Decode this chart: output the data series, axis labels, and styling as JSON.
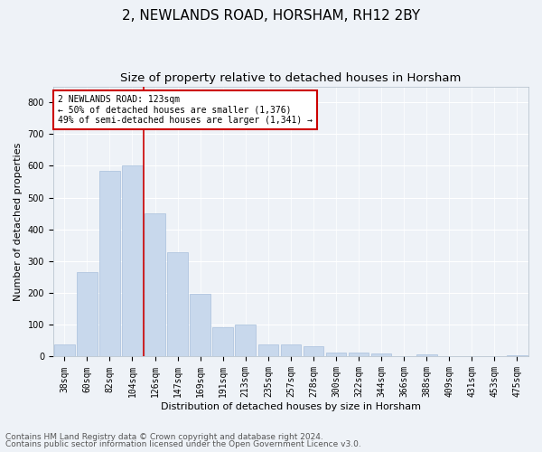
{
  "title": "2, NEWLANDS ROAD, HORSHAM, RH12 2BY",
  "subtitle": "Size of property relative to detached houses in Horsham",
  "xlabel": "Distribution of detached houses by size in Horsham",
  "ylabel": "Number of detached properties",
  "categories": [
    "38sqm",
    "60sqm",
    "82sqm",
    "104sqm",
    "126sqm",
    "147sqm",
    "169sqm",
    "191sqm",
    "213sqm",
    "235sqm",
    "257sqm",
    "278sqm",
    "300sqm",
    "322sqm",
    "344sqm",
    "366sqm",
    "388sqm",
    "409sqm",
    "431sqm",
    "453sqm",
    "475sqm"
  ],
  "values": [
    38,
    265,
    585,
    602,
    450,
    328,
    198,
    92,
    101,
    38,
    38,
    33,
    12,
    12,
    10,
    0,
    8,
    0,
    0,
    0,
    5
  ],
  "bar_color": "#c8d8ec",
  "bar_edgecolor": "#a8c0dc",
  "marker_color": "#cc0000",
  "annotation_title": "2 NEWLANDS ROAD: 123sqm",
  "annotation_line1": "← 50% of detached houses are smaller (1,376)",
  "annotation_line2": "49% of semi-detached houses are larger (1,341) →",
  "ylim": [
    0,
    850
  ],
  "yticks": [
    0,
    100,
    200,
    300,
    400,
    500,
    600,
    700,
    800
  ],
  "footer1": "Contains HM Land Registry data © Crown copyright and database right 2024.",
  "footer2": "Contains public sector information licensed under the Open Government Licence v3.0.",
  "background_color": "#eef2f7",
  "plot_background": "#eef2f7",
  "grid_color": "#ffffff",
  "title_fontsize": 11,
  "subtitle_fontsize": 9.5,
  "axis_label_fontsize": 8,
  "tick_fontsize": 7,
  "annotation_fontsize": 7,
  "footer_fontsize": 6.5
}
